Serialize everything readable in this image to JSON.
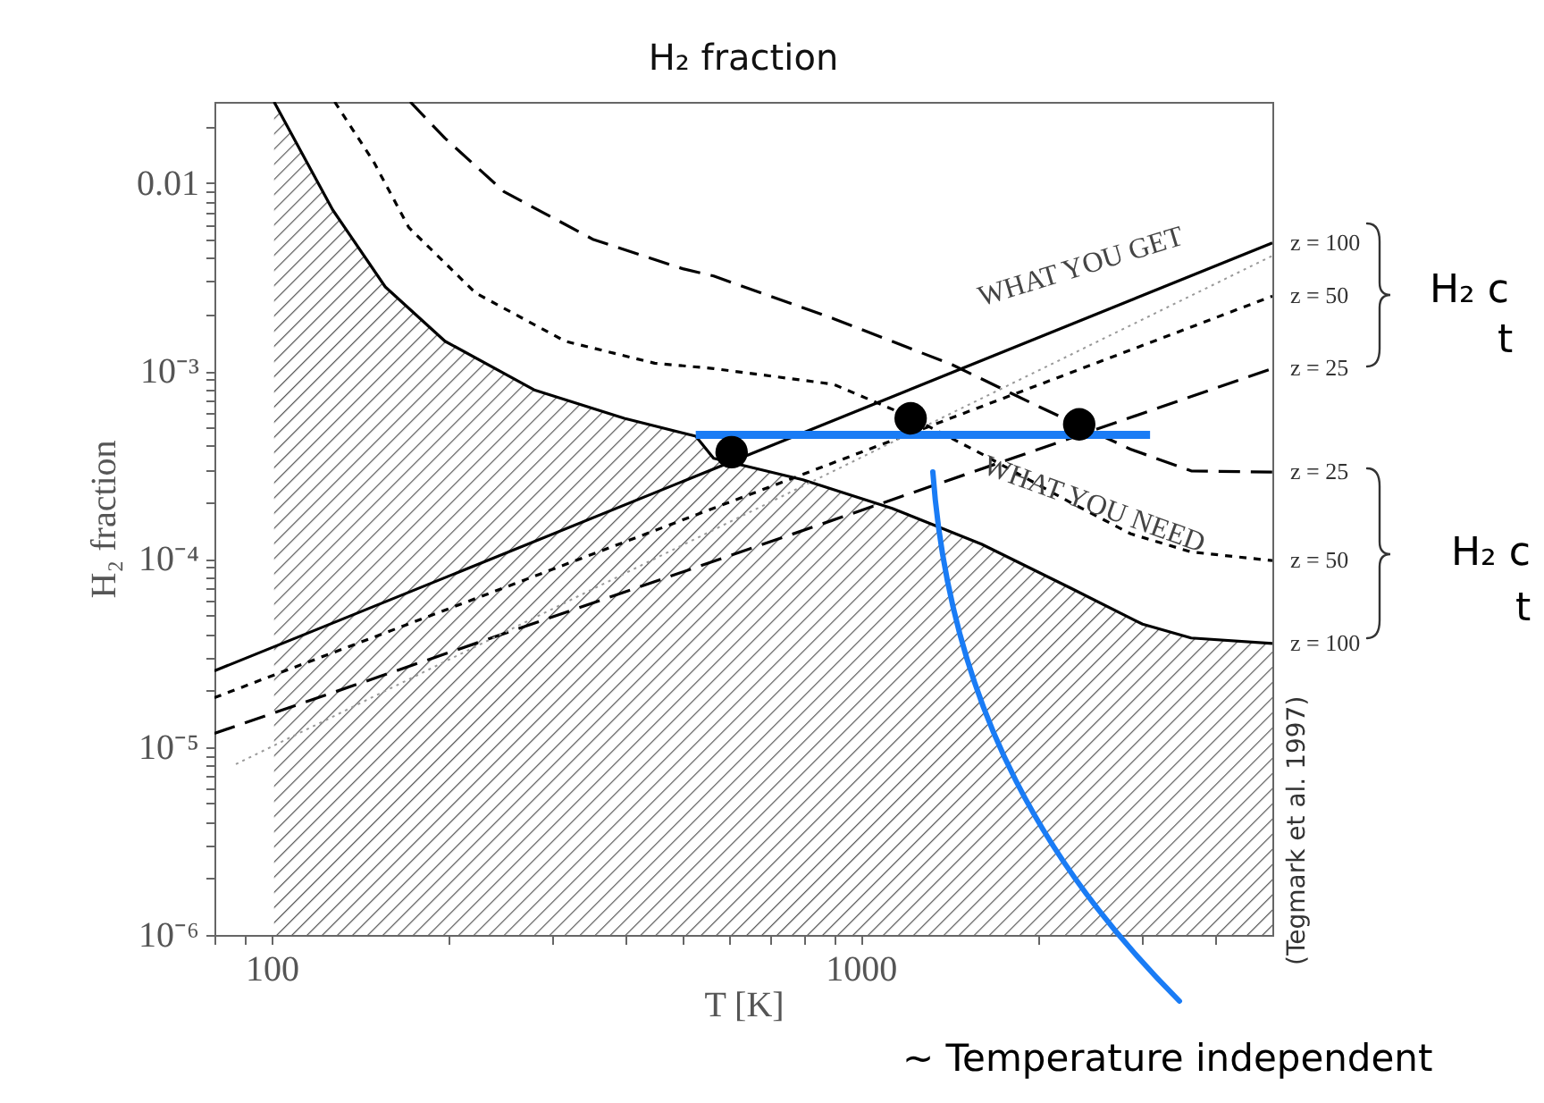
{
  "chart_data": {
    "type": "line",
    "title": "H₂ fraction",
    "xlabel": "T [K]",
    "ylabel": "H₂ fraction",
    "log": "xy",
    "grid": false,
    "xlim": [
      80,
      5000
    ],
    "ylim": [
      1e-06,
      0.027
    ],
    "xticks": [
      {
        "value": 80,
        "label": null
      },
      {
        "value": 90,
        "label": null
      },
      100,
      {
        "value": 200,
        "label": null
      },
      {
        "value": 300,
        "label": null
      },
      {
        "value": 400,
        "label": null
      },
      {
        "value": 500,
        "label": null
      },
      {
        "value": 600,
        "label": null
      },
      {
        "value": 700,
        "label": null
      },
      {
        "value": 800,
        "label": null
      },
      {
        "value": 900,
        "label": null
      },
      1000,
      {
        "value": 2000,
        "label": null
      },
      {
        "value": 3000,
        "label": null
      },
      {
        "value": 4000,
        "label": null
      }
    ],
    "yticks": [
      {
        "value": 1e-06,
        "label": "10⁻⁶"
      },
      {
        "value": 2e-06,
        "label": null
      },
      {
        "value": 3e-06,
        "label": null
      },
      {
        "value": 4e-06,
        "label": null
      },
      {
        "value": 5e-06,
        "label": null
      },
      {
        "value": 6e-06,
        "label": null
      },
      {
        "value": 7e-06,
        "label": null
      },
      {
        "value": 8e-06,
        "label": null
      },
      {
        "value": 9e-06,
        "label": null
      },
      {
        "value": 1e-05,
        "label": "10⁻⁵"
      },
      {
        "value": 2e-05,
        "label": null
      },
      {
        "value": 3e-05,
        "label": null
      },
      {
        "value": 4e-05,
        "label": null
      },
      {
        "value": 5e-05,
        "label": null
      },
      {
        "value": 6e-05,
        "label": null
      },
      {
        "value": 7e-05,
        "label": null
      },
      {
        "value": 8e-05,
        "label": null
      },
      {
        "value": 9e-05,
        "label": null
      },
      {
        "value": 0.0001,
        "label": "10⁻⁴"
      },
      {
        "value": 0.0002,
        "label": null
      },
      {
        "value": 0.0003,
        "label": null
      },
      {
        "value": 0.0004,
        "label": null
      },
      {
        "value": 0.0005,
        "label": null
      },
      {
        "value": 0.0006,
        "label": null
      },
      {
        "value": 0.0007,
        "label": null
      },
      {
        "value": 0.0008,
        "label": null
      },
      {
        "value": 0.0009,
        "label": null
      },
      {
        "value": 0.001,
        "label": "10⁻³"
      },
      {
        "value": 0.002,
        "label": null
      },
      {
        "value": 0.003,
        "label": null
      },
      {
        "value": 0.004,
        "label": null
      },
      {
        "value": 0.005,
        "label": null
      },
      {
        "value": 0.006,
        "label": null
      },
      {
        "value": 0.007,
        "label": null
      },
      {
        "value": 0.008,
        "label": null
      },
      {
        "value": 0.009,
        "label": null
      },
      0.01,
      {
        "value": 0.02,
        "label": null
      }
    ],
    "series": [
      {
        "name": "z = 100",
        "type": "area",
        "color": "#000000",
        "line_style": "solid",
        "x": [
          101,
          127,
          156,
          197,
          280,
          397,
          525,
          563,
          798,
          1131,
          1604,
          2274,
          3010,
          3640,
          5000
        ],
        "values": [
          0.027,
          0.0072,
          0.0028,
          0.00144,
          0.00079,
          0.00056,
          0.00045,
          0.000343,
          0.000264,
          0.000186,
          0.00012,
          7e-05,
          4.5e-05,
          3.8e-05,
          3.55e-05
        ]
      },
      {
        "name": "z = 50",
        "color": "#000000",
        "line_style": "dashed",
        "x": [
          128,
          149,
          171,
          222,
          315,
          447,
          563,
          899,
          1214,
          1611,
          2283,
          2876,
          3640,
          5000
        ],
        "values": [
          0.027,
          0.013,
          0.0058,
          0.0026,
          0.00144,
          0.0011,
          0.00103,
          0.00085,
          0.00057,
          0.00036,
          0.000198,
          0.000136,
          0.000109,
          9.8e-05
        ]
      },
      {
        "name": "z = 25",
        "color": "#000000",
        "line_style": "dashed",
        "x": [
          172,
          197,
          248,
          352,
          499,
          563,
          899,
          1430,
          2020,
          2870,
          3640,
          5000
        ],
        "values": [
          0.027,
          0.0173,
          0.009,
          0.005,
          0.0035,
          0.0032,
          0.0019,
          0.00108,
          0.00064,
          0.000384,
          0.000294,
          0.00029
        ]
      },
      {
        "name": "z = 100",
        "color": "#000000",
        "line_style": "solid",
        "x": [
          80,
          5000
        ],
        "values": [
          2.54e-05,
          0.0048
        ]
      },
      {
        "name": "z = 50",
        "color": "#000000",
        "line_style": "dashed",
        "x": [
          80,
          5000
        ],
        "values": [
          1.83e-05,
          0.0025
        ]
      },
      {
        "name": "z = 25",
        "color": "#000000",
        "line_style": "dashed",
        "x": [
          80,
          5000
        ],
        "values": [
          1.18e-05,
          0.00103
        ]
      },
      {
        "color": "#999999",
        "line_style": "dotted",
        "x": [
          87,
          5000
        ],
        "values": [
          8.1e-06,
          0.0041
        ]
      },
      {
        "color": "#1a7cf5",
        "line_style": "solid",
        "x": [
          525,
          3100
        ],
        "values": [
          0.000457,
          0.000457
        ]
      },
      {
        "type": "scatter",
        "marker": "circle",
        "color": "#000000",
        "x": [
          604,
          1216,
          2350
        ],
        "values": [
          0.00037,
          0.00056,
          0.00052
        ]
      }
    ],
    "annotations": [
      "WHAT YOU GET",
      "WHAT YOU NEED",
      "(Tegmark et al. 1997)",
      "~ Temperature independent",
      "H₂ c",
      "t",
      "H₂ c",
      "t"
    ]
  }
}
